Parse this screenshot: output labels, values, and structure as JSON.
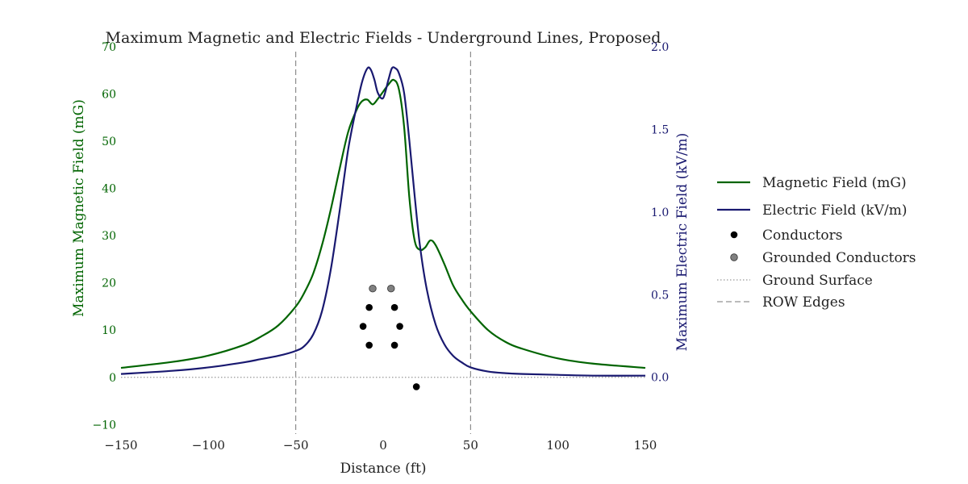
{
  "chart_data": {
    "type": "line",
    "title": "Maximum Magnetic and Electric Fields - Underground Lines, Proposed",
    "xlabel": "Distance (ft)",
    "ylabel_left": "Maximum Magnetic Field (mG)",
    "ylabel_right": "Maximum Electric Field (kV/m)",
    "xlim": [
      -150,
      150
    ],
    "ylim_left": [
      -12,
      70
    ],
    "ylim_right": [
      -0.3429,
      2.0
    ],
    "x_ticks": [
      -150,
      -100,
      -50,
      0,
      50,
      100,
      150
    ],
    "y_ticks_left": [
      -10,
      0,
      10,
      20,
      30,
      40,
      50,
      60,
      70
    ],
    "y_ticks_right": [
      "0.0",
      "0.5",
      "1.0",
      "1.5",
      "2.0"
    ],
    "y_ticks_right_values": [
      0.0,
      0.5,
      1.0,
      1.5,
      2.0
    ],
    "grid": false,
    "legend_position": "outside-right",
    "colors": {
      "magnetic": "#006400",
      "electric": "#191970",
      "conductor": "#000000",
      "grounded": "#808080",
      "ground_surface": "#999999",
      "row_edges": "#777777"
    },
    "series": [
      {
        "name": "Magnetic Field (mG)",
        "axis": "left",
        "x": [
          -150,
          -120,
          -100,
          -80,
          -70,
          -60,
          -50,
          -45,
          -40,
          -35,
          -30,
          -25,
          -20,
          -15,
          -12,
          -9,
          -6,
          -3,
          0,
          3,
          6,
          9,
          12,
          15,
          18,
          21,
          24,
          27,
          30,
          35,
          40,
          45,
          50,
          60,
          70,
          80,
          100,
          120,
          150
        ],
        "y": [
          2,
          3.3,
          4.6,
          6.8,
          8.6,
          11,
          15,
          18,
          22,
          28,
          35.5,
          44,
          52,
          56.8,
          58.5,
          58.8,
          57.8,
          59,
          60.5,
          62,
          63,
          61,
          53,
          38,
          29,
          27,
          27.5,
          29,
          28,
          24,
          19.5,
          16.5,
          14,
          10,
          7.5,
          6,
          4,
          2.9,
          2
        ]
      },
      {
        "name": "Electric Field (kV/m)",
        "axis": "right",
        "x": [
          -150,
          -120,
          -100,
          -80,
          -70,
          -60,
          -50,
          -45,
          -40,
          -35,
          -30,
          -25,
          -20,
          -15,
          -12,
          -9,
          -7,
          -5,
          -3,
          0,
          3,
          5,
          7,
          9,
          12,
          15,
          18,
          21,
          25,
          30,
          35,
          40,
          45,
          50,
          60,
          70,
          80,
          100,
          120,
          150
        ],
        "y": [
          0.02,
          0.04,
          0.06,
          0.09,
          0.11,
          0.13,
          0.16,
          0.19,
          0.26,
          0.4,
          0.65,
          1.0,
          1.38,
          1.65,
          1.79,
          1.87,
          1.86,
          1.8,
          1.72,
          1.69,
          1.8,
          1.87,
          1.87,
          1.84,
          1.72,
          1.43,
          1.1,
          0.8,
          0.53,
          0.32,
          0.2,
          0.13,
          0.09,
          0.06,
          0.035,
          0.025,
          0.02,
          0.015,
          0.01,
          0.01
        ]
      },
      {
        "name": "Conductors",
        "axis": "left",
        "x": [
          -8,
          6.5,
          -11.5,
          9.5,
          -8,
          6.5,
          19
        ],
        "y": [
          14.8,
          14.8,
          10.8,
          10.8,
          6.8,
          6.8,
          -2
        ]
      },
      {
        "name": "Grounded Conductors",
        "axis": "left",
        "x": [
          -6,
          4.5
        ],
        "y": [
          18.8,
          18.8
        ]
      },
      {
        "name": "Ground Surface",
        "axis": "left",
        "x": [
          -150,
          150
        ],
        "y": [
          0,
          0
        ]
      },
      {
        "name": "ROW Edges",
        "axis": "left",
        "x": [
          -50,
          50
        ],
        "y": [
          -12,
          70
        ]
      }
    ]
  },
  "legend": {
    "items": [
      {
        "label": "Magnetic Field (mG)",
        "style": "line",
        "color": "#006400"
      },
      {
        "label": "Electric Field (kV/m)",
        "style": "line",
        "color": "#191970"
      },
      {
        "label": "Conductors",
        "style": "marker",
        "color": "#000000"
      },
      {
        "label": "Grounded Conductors",
        "style": "marker",
        "color": "#808080"
      },
      {
        "label": "Ground Surface",
        "style": "dotted",
        "color": "#999999"
      },
      {
        "label": "ROW Edges",
        "style": "dashed",
        "color": "#777777"
      }
    ]
  }
}
